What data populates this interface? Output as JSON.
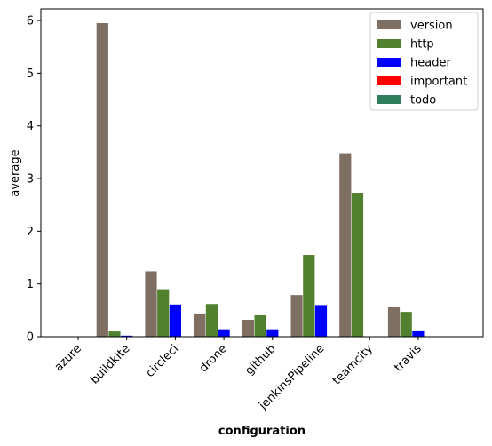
{
  "chart_data": {
    "type": "bar",
    "title": "",
    "xlabel": "configuration",
    "ylabel": "average",
    "ylim": [
      0,
      6.22
    ],
    "yticks": [
      0,
      1,
      2,
      3,
      4,
      5,
      6
    ],
    "grid": false,
    "legend_position": "top-right",
    "categories": [
      "azure",
      "buildkite",
      "circleci",
      "drone",
      "github",
      "jenkinsPipeline",
      "teamcity",
      "travis"
    ],
    "series": [
      {
        "name": "version",
        "color": "#7f6e62",
        "values": [
          0,
          5.95,
          1.24,
          0.44,
          0.32,
          0.79,
          3.48,
          0.56
        ]
      },
      {
        "name": "http",
        "color": "#51802f",
        "values": [
          0,
          0.1,
          0.9,
          0.62,
          0.42,
          1.55,
          2.73,
          0.47
        ]
      },
      {
        "name": "header",
        "color": "#0000ff",
        "values": [
          0,
          0.02,
          0.61,
          0.14,
          0.14,
          0.6,
          0,
          0.12
        ]
      },
      {
        "name": "important",
        "color": "#ff0000",
        "values": [
          0,
          0,
          0,
          0,
          0,
          0,
          0,
          0
        ]
      },
      {
        "name": "todo",
        "color": "#2e7d5b",
        "values": [
          0,
          0,
          0,
          0,
          0,
          0,
          0,
          0
        ]
      }
    ]
  }
}
